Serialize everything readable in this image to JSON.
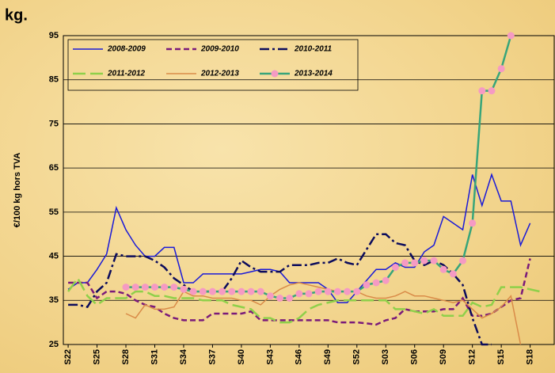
{
  "chart_data": {
    "type": "line",
    "title": "kg.",
    "y_label": "€/100 kg hors TVA",
    "categories": [
      "S22",
      null,
      null,
      "S25",
      null,
      null,
      "S28",
      null,
      null,
      "S31",
      null,
      null,
      "S34",
      null,
      null,
      "S37",
      null,
      null,
      "S40",
      null,
      null,
      "S43",
      null,
      null,
      "S46",
      null,
      null,
      "S49",
      null,
      null,
      "S52",
      null,
      null,
      "S03",
      null,
      null,
      "S06",
      null,
      null,
      "S09",
      null,
      null,
      "S12",
      null,
      null,
      "S15",
      null,
      null,
      "S18",
      null,
      null
    ],
    "ylim": [
      25,
      95
    ],
    "yticks": [
      25,
      35,
      45,
      55,
      65,
      75,
      85,
      95
    ],
    "grid": true,
    "legend": "top-left",
    "series": [
      {
        "name": "2008-2009",
        "color": "#1a1ad8",
        "dash": "solid",
        "width": 1.5,
        "values": [
          37.5,
          39,
          39,
          42,
          45.5,
          56,
          51,
          47.5,
          45,
          45,
          47,
          47,
          39,
          39,
          41,
          41,
          41,
          41,
          41,
          41.5,
          42,
          42,
          41.5,
          39,
          39,
          39,
          39,
          37.5,
          34.5,
          34.5,
          37,
          39.5,
          42,
          42,
          43.5,
          42.5,
          42.5,
          46,
          47.5,
          54,
          52.5,
          51,
          63.5,
          56.5,
          63.5,
          57.5,
          57.5,
          47.5,
          52.5,
          null,
          null
        ]
      },
      {
        "name": "2009-2010",
        "color": "#7a1a7a",
        "dash": "dashed",
        "width": 2.5,
        "values": [
          39,
          39,
          39,
          35.5,
          37,
          37,
          36.5,
          35,
          34,
          33.5,
          32,
          31,
          30.5,
          30.5,
          30.5,
          32,
          32,
          32,
          32,
          32.5,
          30.5,
          30.5,
          30.5,
          30.5,
          30.5,
          30.5,
          30.5,
          30.5,
          30,
          30,
          30,
          29.8,
          29.5,
          30.5,
          31,
          33,
          32.5,
          32.5,
          32.5,
          33,
          33,
          35.5,
          31.5,
          31.5,
          32,
          33.5,
          35,
          35.5,
          44.5,
          null,
          null
        ]
      },
      {
        "name": "2010-2011",
        "color": "#0c0c5c",
        "dash": "dashdot",
        "width": 2.5,
        "values": [
          34,
          34,
          33.5,
          37,
          39,
          45.5,
          45,
          45,
          45,
          44,
          42.5,
          40,
          38.5,
          37,
          37,
          37,
          37,
          40,
          44,
          42.5,
          41.5,
          41.5,
          41.5,
          43,
          43,
          43,
          43.5,
          43.5,
          44.5,
          43.5,
          43,
          46.5,
          50,
          50,
          48,
          47.5,
          44,
          43,
          44,
          43,
          41,
          38.5,
          31,
          25,
          25,
          null,
          null,
          null,
          null,
          null,
          null
        ]
      },
      {
        "name": "2011-2012",
        "color": "#8fd04a",
        "dash": "longdash",
        "width": 2.5,
        "values": [
          37,
          40,
          36,
          34,
          35.5,
          35.5,
          35.5,
          37,
          37,
          36,
          36,
          35.5,
          35.5,
          35.5,
          35,
          35,
          35,
          34,
          33.5,
          33,
          31,
          31,
          30,
          30,
          31,
          33,
          34,
          34.5,
          35,
          35,
          35,
          35,
          35,
          35,
          33,
          33,
          32.5,
          32,
          33,
          31.5,
          31.5,
          31.5,
          34.5,
          33.5,
          34,
          38,
          38,
          38,
          37.5,
          37,
          null
        ]
      },
      {
        "name": "2012-2013",
        "color": "#d98b48",
        "dash": "solid",
        "width": 1.5,
        "values": [
          null,
          null,
          null,
          null,
          null,
          null,
          32,
          31,
          34,
          33,
          33,
          33.5,
          37,
          36,
          36,
          35.5,
          35.5,
          35.5,
          35,
          35,
          34,
          36,
          37.5,
          38.5,
          39,
          38.5,
          38,
          37.5,
          37,
          37,
          37,
          36,
          35.5,
          35.5,
          36,
          37,
          36,
          36,
          35.5,
          35,
          34.5,
          35,
          33,
          31,
          32,
          33.5,
          36,
          25,
          null,
          null,
          null
        ]
      },
      {
        "name": "2013-2014",
        "color": "#38a57a",
        "dash": "solid",
        "width": 2.5,
        "marker": "circle",
        "marker_color": "#f59ac3",
        "values": [
          null,
          null,
          null,
          null,
          null,
          null,
          38,
          38,
          38,
          38,
          38,
          38,
          37.5,
          37,
          37,
          37,
          37,
          37,
          37,
          37,
          37,
          36,
          35.5,
          35.5,
          36.5,
          36.5,
          37,
          37,
          37,
          37,
          37,
          38.5,
          39,
          39.5,
          42.5,
          43.5,
          43.5,
          44,
          44,
          42,
          41,
          44,
          52.5,
          82.5,
          82.5,
          87.5,
          95,
          null,
          null,
          null,
          null
        ]
      }
    ]
  }
}
